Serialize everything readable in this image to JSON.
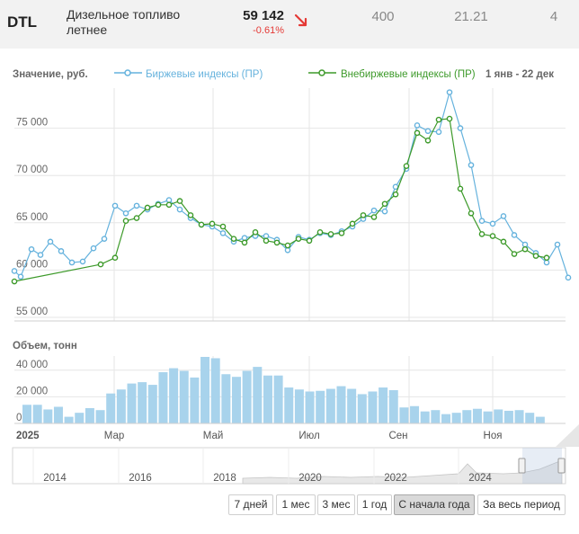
{
  "quote": {
    "ticker": "DTL",
    "name": "Дизельное топливо летнее",
    "price": "59 142",
    "change": "-0.61%",
    "col3": "400",
    "col4": "21.21",
    "col5": "4"
  },
  "colors": {
    "exchange": "#65b2dd",
    "otc": "#3d9a2a",
    "volume": "#a8d3ec",
    "change_down": "#e53935"
  },
  "chart_data": [
    {
      "type": "line",
      "ylabel": "Значение, руб.",
      "date_range_label": "1 янв - 22 дек",
      "y_ticks": [
        "55 000",
        "60 000",
        "65 000",
        "70 000",
        "75 000"
      ],
      "ylim": [
        55000,
        80000
      ],
      "x_ticks": [
        "2025",
        "Мар",
        "Май",
        "Июл",
        "Сен",
        "Ноя"
      ],
      "series": [
        {
          "name": "Биржевые индексы (ПР)",
          "values": [
            [
              0,
              59900
            ],
            [
              7,
              59300
            ],
            [
              19,
              62200
            ],
            [
              29,
              61600
            ],
            [
              40,
              63000
            ],
            [
              52,
              62000
            ],
            [
              64,
              60800
            ],
            [
              76,
              60900
            ],
            [
              88,
              62300
            ],
            [
              100,
              63300
            ],
            [
              112,
              66800
            ],
            [
              124,
              66000
            ],
            [
              136,
              66800
            ],
            [
              148,
              66400
            ],
            [
              160,
              67000
            ],
            [
              172,
              67400
            ],
            [
              184,
              66400
            ],
            [
              196,
              65500
            ],
            [
              208,
              64800
            ],
            [
              220,
              64600
            ],
            [
              232,
              63900
            ],
            [
              244,
              63000
            ],
            [
              256,
              63400
            ],
            [
              268,
              63600
            ],
            [
              280,
              63600
            ],
            [
              292,
              63200
            ],
            [
              304,
              62100
            ],
            [
              316,
              63500
            ],
            [
              328,
              63200
            ],
            [
              340,
              63900
            ],
            [
              352,
              63700
            ],
            [
              364,
              64100
            ],
            [
              376,
              64600
            ],
            [
              388,
              65400
            ],
            [
              400,
              66300
            ],
            [
              412,
              66200
            ],
            [
              424,
              68800
            ],
            [
              436,
              70700
            ],
            [
              448,
              75300
            ],
            [
              460,
              74700
            ],
            [
              472,
              74600
            ],
            [
              484,
              78800
            ],
            [
              496,
              75000
            ],
            [
              508,
              71100
            ],
            [
              520,
              65200
            ],
            [
              532,
              64900
            ],
            [
              544,
              65700
            ],
            [
              556,
              63700
            ],
            [
              568,
              62700
            ],
            [
              580,
              61800
            ],
            [
              592,
              60800
            ],
            [
              604,
              62700
            ],
            [
              616,
              59200
            ]
          ]
        },
        {
          "name": "Внебиржевые индексы (ПР)",
          "values": [
            [
              0,
              58800
            ],
            [
              96,
              60600
            ],
            [
              112,
              61300
            ],
            [
              124,
              65200
            ],
            [
              136,
              65500
            ],
            [
              148,
              66600
            ],
            [
              160,
              66900
            ],
            [
              172,
              66900
            ],
            [
              184,
              67300
            ],
            [
              196,
              65800
            ],
            [
              208,
              64800
            ],
            [
              220,
              64900
            ],
            [
              232,
              64600
            ],
            [
              244,
              63300
            ],
            [
              256,
              62900
            ],
            [
              268,
              64000
            ],
            [
              280,
              63100
            ],
            [
              292,
              62900
            ],
            [
              304,
              62600
            ],
            [
              316,
              63300
            ],
            [
              328,
              63100
            ],
            [
              340,
              64000
            ],
            [
              352,
              63800
            ],
            [
              364,
              63900
            ],
            [
              376,
              64900
            ],
            [
              388,
              65800
            ],
            [
              400,
              65600
            ],
            [
              412,
              67000
            ],
            [
              424,
              68000
            ],
            [
              436,
              71000
            ],
            [
              448,
              74500
            ],
            [
              460,
              73700
            ],
            [
              472,
              75900
            ],
            [
              484,
              76000
            ],
            [
              496,
              68600
            ],
            [
              508,
              66000
            ],
            [
              520,
              63800
            ],
            [
              532,
              63600
            ],
            [
              544,
              63000
            ],
            [
              556,
              61700
            ],
            [
              568,
              62200
            ],
            [
              580,
              61500
            ],
            [
              592,
              61300
            ]
          ]
        }
      ]
    },
    {
      "type": "bar",
      "ylabel": "Объем, тонн",
      "y_ticks": [
        "0",
        "20 000",
        "40 000"
      ],
      "ylim": [
        0,
        50000
      ],
      "values": [
        14000,
        14000,
        10500,
        12500,
        5000,
        8000,
        11500,
        10000,
        22500,
        25500,
        30000,
        31000,
        29000,
        38500,
        41500,
        39500,
        34500,
        50000,
        49000,
        37000,
        35000,
        39500,
        42500,
        36000,
        36000,
        27000,
        25500,
        24000,
        24500,
        26000,
        28000,
        26000,
        22000,
        24000,
        27000,
        25000,
        12000,
        13000,
        9000,
        10000,
        7000,
        8000,
        10000,
        11000,
        9000,
        10500,
        9500,
        10000,
        8000,
        5000
      ]
    }
  ],
  "navigator": {
    "years": [
      "2014",
      "2016",
      "2018",
      "2020",
      "2022",
      "2024"
    ]
  },
  "periods": [
    "7 дней",
    "1 мес",
    "3 мес",
    "1 год",
    "С начала года",
    "За весь период"
  ],
  "active_period": "С начала года"
}
